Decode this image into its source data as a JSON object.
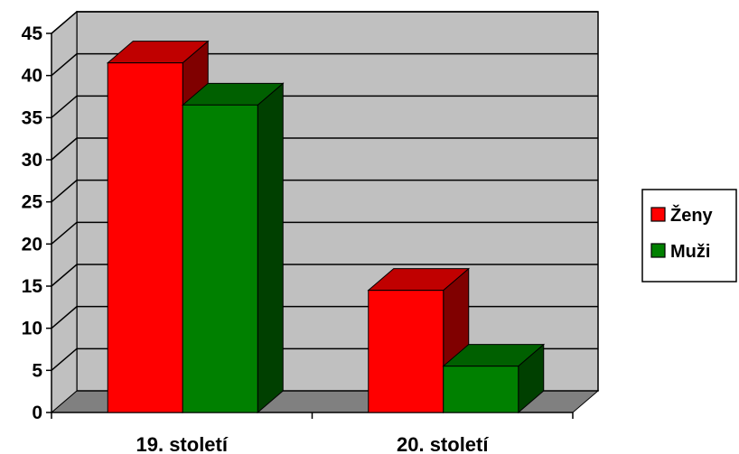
{
  "chart_data": {
    "type": "bar",
    "style": "3d-clustered-column",
    "categories": [
      "19. století",
      "20. století"
    ],
    "series": [
      {
        "name": "Ženy",
        "values": [
          41.5,
          14.5
        ],
        "color": "#ff0000",
        "side_color": "#800000",
        "top_color": "#c00000"
      },
      {
        "name": "Muži",
        "values": [
          36.5,
          5.5
        ],
        "color": "#008000",
        "side_color": "#004000",
        "top_color": "#006000"
      }
    ],
    "ylim": [
      0,
      45
    ],
    "yticks": [
      "0",
      "5",
      "10",
      "15",
      "20",
      "25",
      "30",
      "35",
      "40",
      "45"
    ],
    "grid": true,
    "wall_color": "#c0c0c0",
    "floor_color": "#808080",
    "legend_position": "right"
  }
}
